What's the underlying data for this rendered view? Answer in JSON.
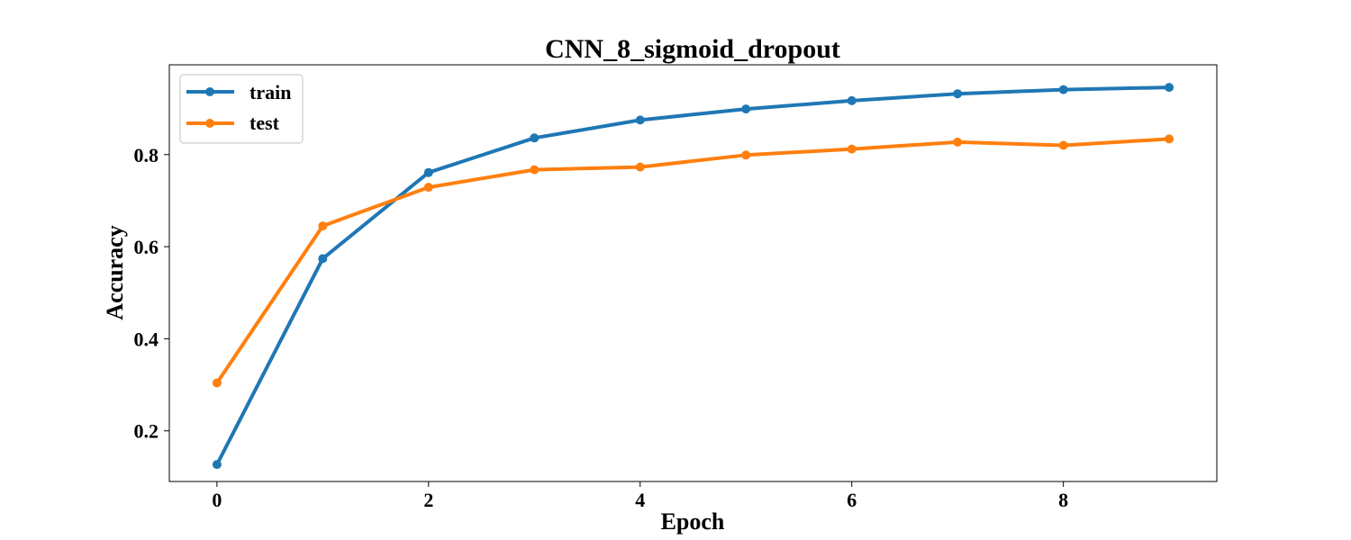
{
  "chart_data": {
    "type": "line",
    "title": "CNN_8_sigmoid_dropout",
    "xlabel": "Epoch",
    "ylabel": "Accuracy",
    "x": [
      0,
      1,
      2,
      3,
      4,
      5,
      6,
      7,
      8,
      9
    ],
    "xlim": [
      -0.45,
      9.45
    ],
    "ylim": [
      0.09,
      0.995
    ],
    "xticks": [
      0,
      2,
      4,
      6,
      8
    ],
    "xtick_labels": [
      "0",
      "2",
      "4",
      "6",
      "8"
    ],
    "yticks": [
      0.2,
      0.4,
      0.6,
      0.8
    ],
    "ytick_labels": [
      "0.2",
      "0.4",
      "0.6",
      "0.8"
    ],
    "grid": false,
    "legend_position": "top-left",
    "series": [
      {
        "name": "train",
        "color": "#1f77b4",
        "marker": "circle",
        "values": [
          0.127,
          0.574,
          0.761,
          0.836,
          0.875,
          0.899,
          0.917,
          0.932,
          0.941,
          0.946
        ]
      },
      {
        "name": "test",
        "color": "#ff7f0e",
        "marker": "circle",
        "values": [
          0.304,
          0.645,
          0.729,
          0.767,
          0.773,
          0.799,
          0.812,
          0.827,
          0.82,
          0.834
        ]
      }
    ]
  }
}
